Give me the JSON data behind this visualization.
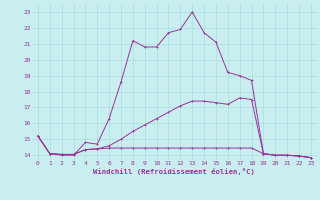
{
  "title": "Windchill (Refroidissement éolien,°C)",
  "bg_color": "#c8eef0",
  "line_color": "#993399",
  "grid_color": "#aadddd",
  "xlim": [
    -0.5,
    23.5
  ],
  "ylim": [
    13.7,
    23.5
  ],
  "xticks": [
    0,
    1,
    2,
    3,
    4,
    5,
    6,
    7,
    8,
    9,
    10,
    11,
    12,
    13,
    14,
    15,
    16,
    17,
    18,
    19,
    20,
    21,
    22,
    23
  ],
  "yticks": [
    14,
    15,
    16,
    17,
    18,
    19,
    20,
    21,
    22,
    23
  ],
  "line1_x": [
    0,
    1,
    2,
    3,
    4,
    5,
    6,
    7,
    8,
    9,
    10,
    11,
    12,
    13,
    14,
    15,
    16,
    17,
    18,
    19,
    20,
    21,
    22,
    23
  ],
  "line1_y": [
    15.2,
    14.1,
    14.0,
    14.0,
    14.8,
    14.7,
    16.3,
    18.6,
    21.2,
    20.8,
    20.8,
    21.7,
    21.9,
    23.0,
    21.7,
    21.1,
    19.2,
    19.0,
    18.7,
    14.1,
    14.0,
    14.0,
    13.95,
    13.85
  ],
  "line2_x": [
    0,
    1,
    2,
    3,
    4,
    5,
    6,
    7,
    8,
    9,
    10,
    11,
    12,
    13,
    14,
    15,
    16,
    17,
    18,
    19,
    20,
    21,
    22,
    23
  ],
  "line2_y": [
    15.2,
    14.1,
    14.05,
    14.05,
    14.35,
    14.4,
    14.45,
    14.45,
    14.45,
    14.45,
    14.45,
    14.45,
    14.45,
    14.45,
    14.45,
    14.45,
    14.45,
    14.45,
    14.45,
    14.1,
    14.0,
    14.0,
    13.95,
    13.85
  ],
  "line3_x": [
    0,
    1,
    2,
    3,
    4,
    5,
    6,
    7,
    8,
    9,
    10,
    11,
    12,
    13,
    14,
    15,
    16,
    17,
    18,
    19,
    20,
    21,
    22,
    23
  ],
  "line3_y": [
    15.2,
    14.1,
    14.05,
    14.05,
    14.35,
    14.4,
    14.6,
    15.0,
    15.5,
    15.9,
    16.3,
    16.7,
    17.1,
    17.4,
    17.4,
    17.3,
    17.2,
    17.6,
    17.5,
    14.1,
    14.0,
    14.0,
    13.95,
    13.85
  ]
}
